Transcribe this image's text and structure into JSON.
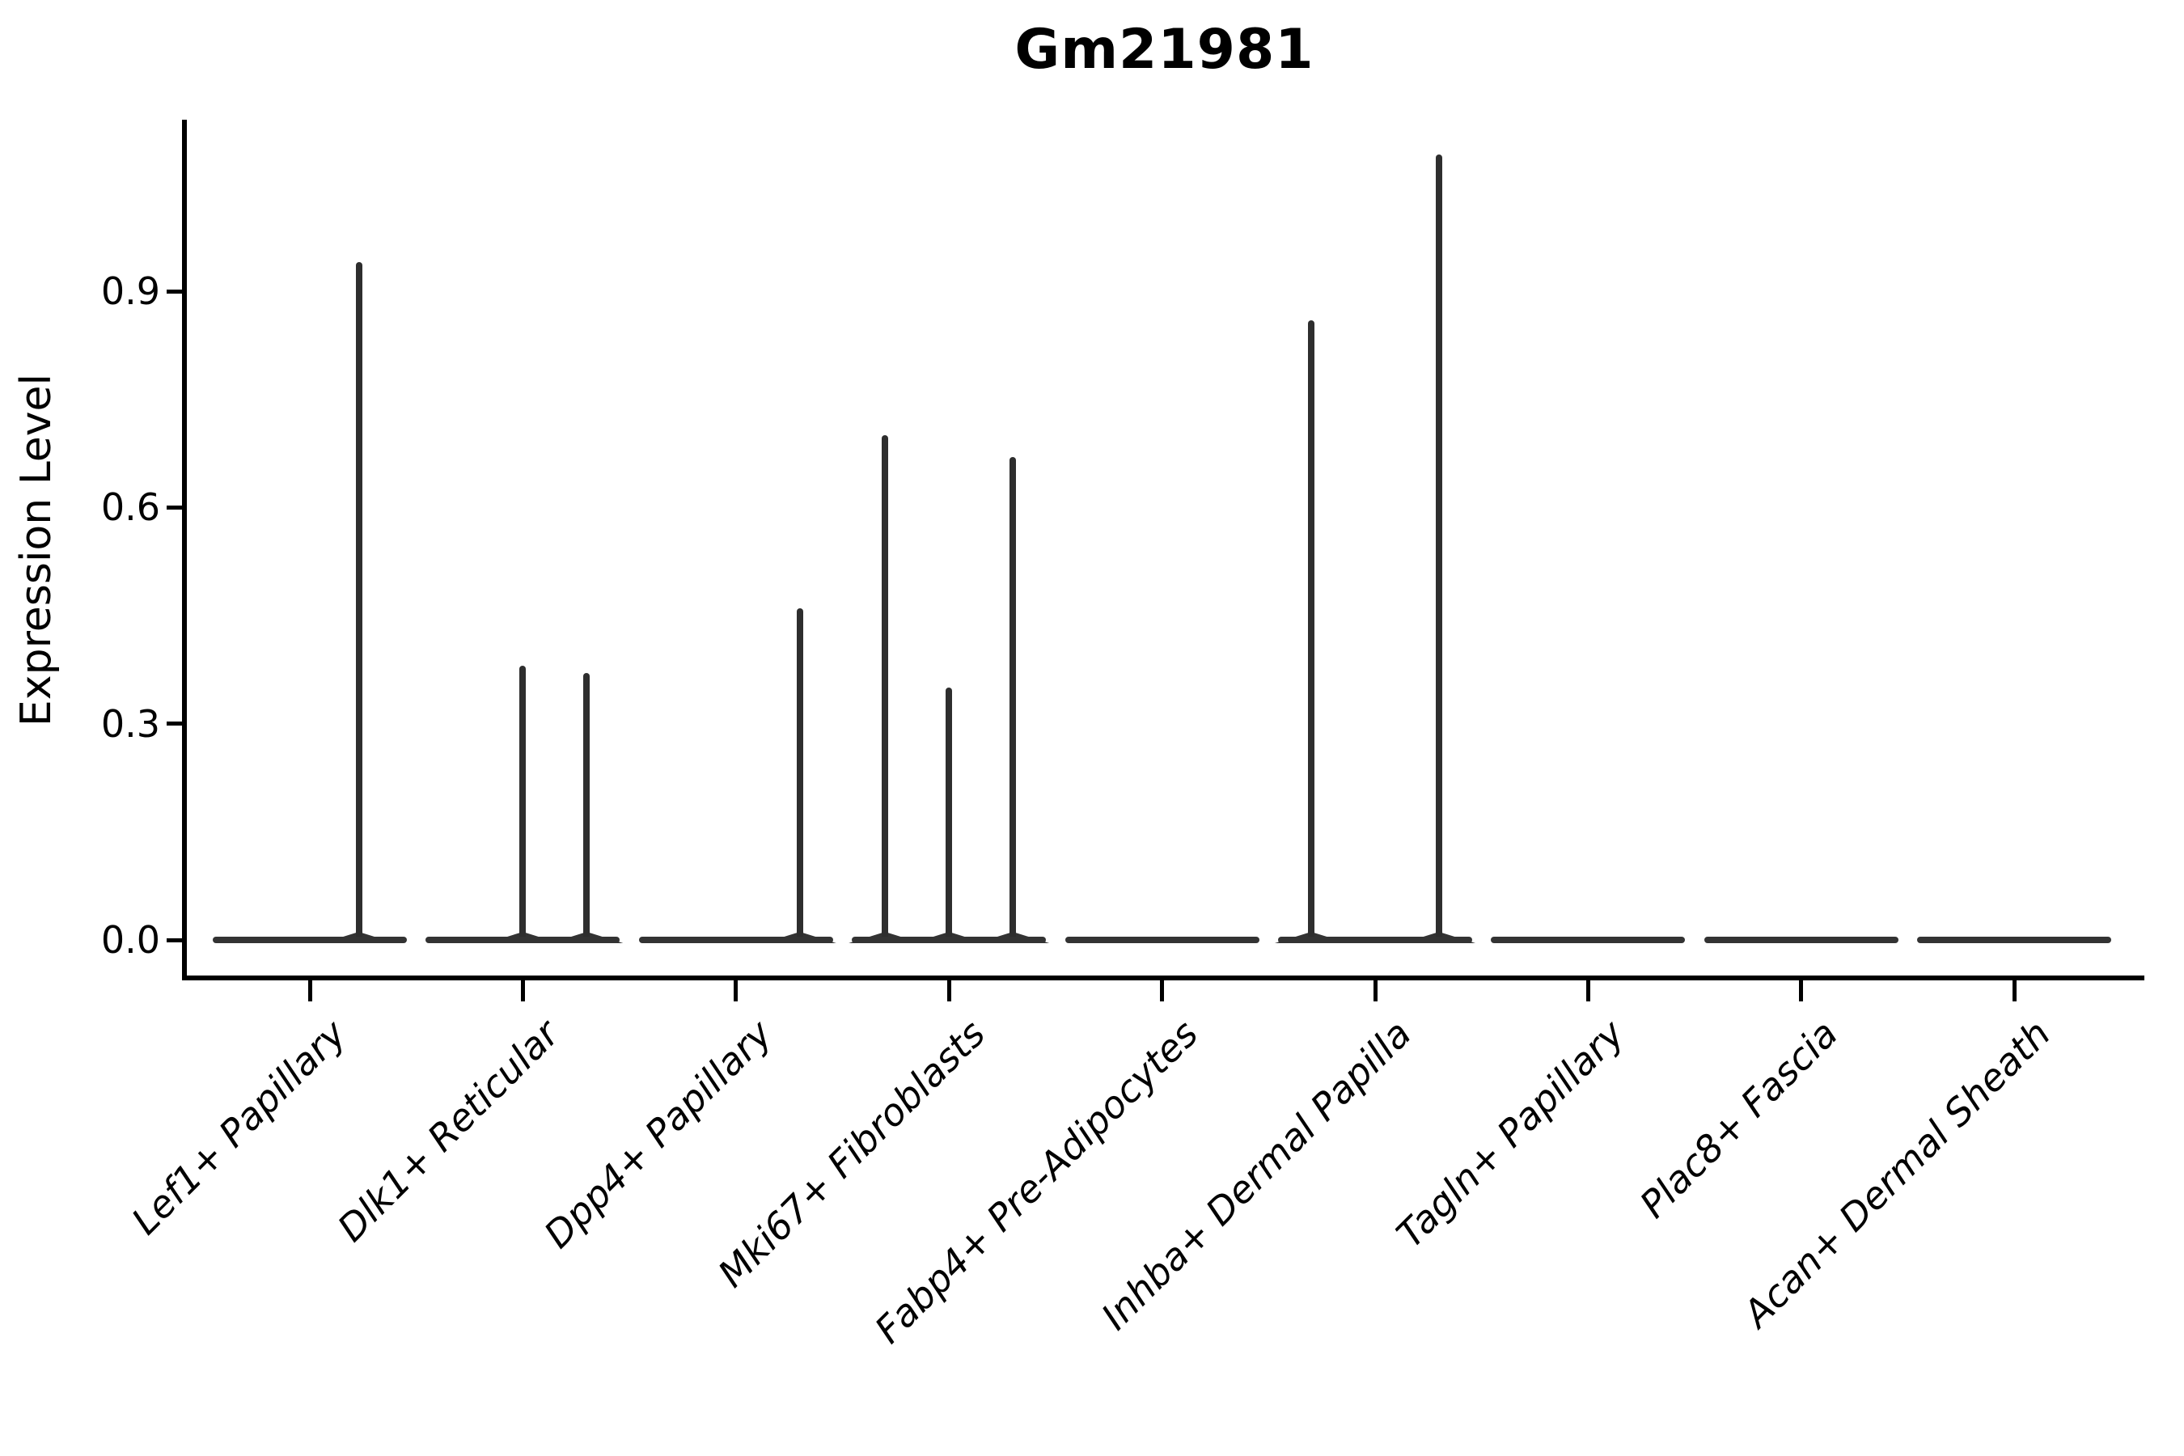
{
  "title": "Gm21981",
  "chart_data": {
    "type": "violin",
    "title": "Gm21981",
    "xlabel": "",
    "ylabel": "Expression Level",
    "ylim": [
      -0.05,
      1.14
    ],
    "yticks": [
      0.0,
      0.3,
      0.6,
      0.9
    ],
    "ytick_labels": [
      "0.0",
      "0.3",
      "0.6",
      "0.9"
    ],
    "grid": false,
    "legend": "none",
    "violin_color": "#333333",
    "spike_color": "#2e2e2e",
    "axis_color": "#000000",
    "violin_halfwidth": 0.45,
    "categories": [
      "Lef1+ Papillary",
      "Dlk1+ Reticular",
      "Dpp4+ Papillary",
      "Mki67+ Fibroblasts",
      "Fabp4+ Pre-Adipocytes",
      "Inhba+ Dermal Papilla",
      "Tagln+ Papillary",
      "Plac8+ Fascia",
      "Acan+ Dermal Sheath"
    ],
    "series": [
      {
        "category": "Lef1+ Papillary",
        "baseline_value": 0.0,
        "spikes": [
          {
            "offset": 0.23,
            "value": 0.94
          }
        ]
      },
      {
        "category": "Dlk1+ Reticular",
        "baseline_value": 0.0,
        "spikes": [
          {
            "offset": 0.0,
            "value": 0.38
          },
          {
            "offset": 0.3,
            "value": 0.37
          }
        ]
      },
      {
        "category": "Dpp4+ Papillary",
        "baseline_value": 0.0,
        "spikes": [
          {
            "offset": 0.3,
            "value": 0.46
          }
        ]
      },
      {
        "category": "Mki67+ Fibroblasts",
        "baseline_value": 0.0,
        "spikes": [
          {
            "offset": -0.3,
            "value": 0.7
          },
          {
            "offset": 0.0,
            "value": 0.35
          },
          {
            "offset": 0.3,
            "value": 0.67
          }
        ]
      },
      {
        "category": "Fabp4+ Pre-Adipocytes",
        "baseline_value": 0.0,
        "spikes": []
      },
      {
        "category": "Inhba+ Dermal Papilla",
        "baseline_value": 0.0,
        "spikes": [
          {
            "offset": -0.3,
            "value": 0.86
          },
          {
            "offset": 0.3,
            "value": 1.09
          }
        ]
      },
      {
        "category": "Tagln+ Papillary",
        "baseline_value": 0.0,
        "spikes": []
      },
      {
        "category": "Plac8+ Fascia",
        "baseline_value": 0.0,
        "spikes": []
      },
      {
        "category": "Acan+ Dermal Sheath",
        "baseline_value": 0.0,
        "spikes": []
      }
    ]
  }
}
